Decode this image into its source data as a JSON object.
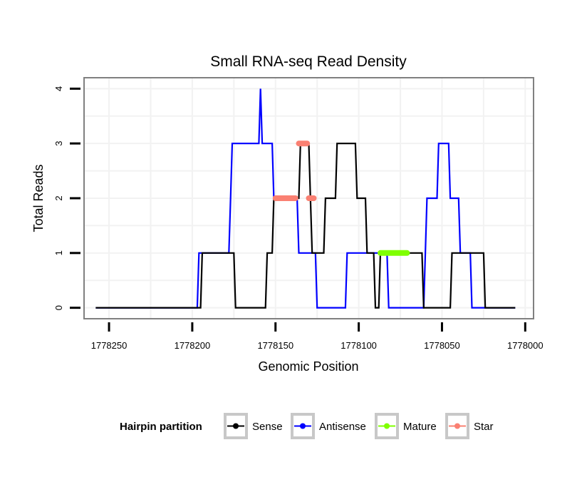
{
  "chart_data": {
    "type": "line",
    "title": "Small RNA-seq Read Density",
    "xlabel": "Genomic Position",
    "ylabel": "Total Reads",
    "xlim": [
      1778265,
      1777995
    ],
    "ylim": [
      -0.2,
      4.2
    ],
    "x_reversed": true,
    "x_ticks": [
      1778250,
      1778200,
      1778150,
      1778100,
      1778050,
      1778000
    ],
    "x_tick_labels": [
      "1778250",
      "1778200",
      "1778150",
      "1778100",
      "1778050",
      "1778000"
    ],
    "y_ticks": [
      0,
      1,
      2,
      3,
      4
    ],
    "y_tick_labels": [
      "0",
      "1",
      "2",
      "3",
      "4"
    ],
    "grid": true,
    "legend": {
      "title": "Hairpin partition",
      "position": "bottom",
      "entries": [
        "Sense",
        "Antisense",
        "Mature",
        "Star"
      ]
    },
    "series": [
      {
        "name": "Sense",
        "color": "#000000",
        "style": "step-line",
        "points": [
          [
            1778258,
            0
          ],
          [
            1778195,
            0
          ],
          [
            1778194,
            1
          ],
          [
            1778175,
            1
          ],
          [
            1778174,
            0
          ],
          [
            1778156,
            0
          ],
          [
            1778155,
            1
          ],
          [
            1778152,
            1
          ],
          [
            1778151,
            2
          ],
          [
            1778136,
            2
          ],
          [
            1778135,
            3
          ],
          [
            1778130,
            3
          ],
          [
            1778129,
            2
          ],
          [
            1778128,
            1
          ],
          [
            1778121,
            1
          ],
          [
            1778120,
            2
          ],
          [
            1778114,
            2
          ],
          [
            1778113,
            3
          ],
          [
            1778102,
            3
          ],
          [
            1778101,
            2
          ],
          [
            1778096,
            2
          ],
          [
            1778095,
            1
          ],
          [
            1778091,
            1
          ],
          [
            1778090,
            0
          ],
          [
            1778088,
            0
          ],
          [
            1778087,
            1
          ],
          [
            1778062,
            1
          ],
          [
            1778061,
            0
          ],
          [
            1778045,
            0
          ],
          [
            1778044,
            1
          ],
          [
            1778025,
            1
          ],
          [
            1778024,
            0
          ],
          [
            1778006,
            0
          ]
        ]
      },
      {
        "name": "Antisense",
        "color": "#0000ff",
        "style": "step-line",
        "points": [
          [
            1778258,
            0
          ],
          [
            1778197,
            0
          ],
          [
            1778196,
            1
          ],
          [
            1778178,
            1
          ],
          [
            1778177,
            2
          ],
          [
            1778176,
            3
          ],
          [
            1778160,
            3
          ],
          [
            1778159,
            4
          ],
          [
            1778158,
            3
          ],
          [
            1778152,
            3
          ],
          [
            1778151,
            2
          ],
          [
            1778137,
            2
          ],
          [
            1778136,
            1
          ],
          [
            1778126,
            1
          ],
          [
            1778125,
            0
          ],
          [
            1778108,
            0
          ],
          [
            1778107,
            1
          ],
          [
            1778083,
            1
          ],
          [
            1778082,
            0
          ],
          [
            1778061,
            0
          ],
          [
            1778060,
            1
          ],
          [
            1778059,
            2
          ],
          [
            1778053,
            2
          ],
          [
            1778052,
            3
          ],
          [
            1778046,
            3
          ],
          [
            1778045,
            2
          ],
          [
            1778040,
            2
          ],
          [
            1778039,
            1
          ],
          [
            1778033,
            1
          ],
          [
            1778032,
            0
          ],
          [
            1778006,
            0
          ]
        ]
      },
      {
        "name": "Mature",
        "color": "#7fff00",
        "style": "thick-segment",
        "points": [
          [
            1778087,
            1
          ],
          [
            1778071,
            1
          ]
        ]
      },
      {
        "name": "Star",
        "color": "#fa8072",
        "style": "thick-segment",
        "segments": [
          [
            [
              1778150,
              2
            ],
            [
              1778138,
              2
            ]
          ],
          [
            [
              1778136,
              3
            ],
            [
              1778131,
              3
            ]
          ],
          [
            [
              1778130,
              2
            ],
            [
              1778127,
              2
            ]
          ]
        ]
      }
    ]
  }
}
